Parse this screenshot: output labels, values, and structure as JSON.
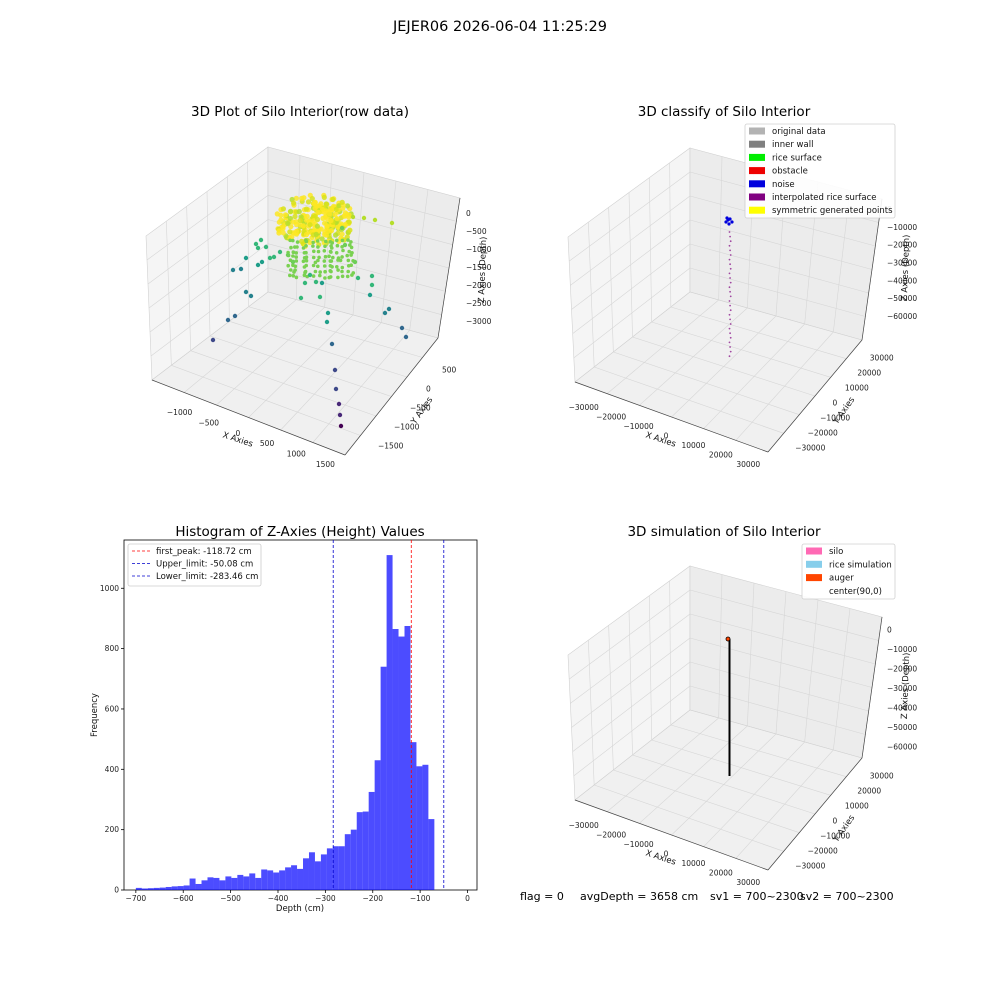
{
  "suptitle": "JEJER06 2026-06-04 11:25:29",
  "panels": {
    "raw": {
      "title": "3D Plot of Silo Interior(row data)",
      "xlabel": "X Axies",
      "ylabel": "Y Axies",
      "zlabel": "Z Axies (Depth)",
      "xticks": [
        "−1000",
        "−500",
        "0",
        "500",
        "1000",
        "1500"
      ],
      "yticks": [
        "500",
        "0",
        "−500",
        "−1000",
        "−1500"
      ],
      "zticks": [
        "0",
        "−500",
        "−1000",
        "−1500",
        "−2000",
        "−2500",
        "−3000"
      ]
    },
    "classify": {
      "title": "3D classify of Silo Interior",
      "xlabel": "X Axies",
      "ylabel": "Y Axies",
      "zlabel": "Z Axies (Depth)",
      "xticks": [
        "−30000",
        "−20000",
        "−10000",
        "0",
        "10000",
        "20000",
        "30000"
      ],
      "yticks": [
        "30000",
        "20000",
        "10000",
        "0",
        "−10000",
        "−20000",
        "−30000"
      ],
      "zticks": [
        "0",
        "−10000",
        "−20000",
        "−30000",
        "−40000",
        "−50000",
        "−60000"
      ],
      "legend": [
        {
          "label": "original data",
          "color": "#b3b3b3"
        },
        {
          "label": "inner wall",
          "color": "#808080"
        },
        {
          "label": "rice surface",
          "color": "#00ee00"
        },
        {
          "label": "obstacle",
          "color": "#ee0000"
        },
        {
          "label": "noise",
          "color": "#0000dd"
        },
        {
          "label": "interpolated rice surface",
          "color": "#800080"
        },
        {
          "label": "symmetric generated points",
          "color": "#ffff00"
        }
      ]
    },
    "simulation": {
      "title": "3D simulation of Silo Interior",
      "xlabel": "X Axies",
      "ylabel": "Y Axies",
      "zlabel": "Z Axies (Depth)",
      "xticks": [
        "−30000",
        "−20000",
        "−10000",
        "0",
        "10000",
        "20000",
        "30000"
      ],
      "yticks": [
        "30000",
        "20000",
        "10000",
        "0",
        "−10000",
        "−20000",
        "−30000"
      ],
      "zticks": [
        "0",
        "−10000",
        "−20000",
        "−30000",
        "−40000",
        "−50000",
        "−60000"
      ],
      "legend": [
        {
          "label": "silo",
          "color": "#ff69b4"
        },
        {
          "label": "rice simulation",
          "color": "#87ceeb"
        },
        {
          "label": "auger",
          "color": "#ff4500"
        },
        {
          "label": "center(90,0)",
          "color": "none"
        }
      ]
    }
  },
  "status": {
    "flag": "flag = 0",
    "avg": "avgDepth = 3658 cm",
    "sv1": "sv1 = 700~2300",
    "sv2": "sv2 = 700~2300"
  },
  "chart_data": [
    {
      "type": "scatter",
      "title": "3D Plot of Silo Interior(row data)",
      "xlabel": "X Axies",
      "ylabel": "Y Axies",
      "zlabel": "Z Axies (Depth)",
      "xlim": [
        -1300,
        1700
      ],
      "ylim": [
        -1600,
        800
      ],
      "zlim": [
        -3300,
        100
      ],
      "colormap": "viridis"
    },
    {
      "type": "scatter",
      "title": "3D classify of Silo Interior",
      "xlabel": "X Axies",
      "ylabel": "Y Axies",
      "zlabel": "Z Axies (Depth)",
      "xlim": [
        -35000,
        35000
      ],
      "ylim": [
        -35000,
        35000
      ],
      "zlim": [
        -65000,
        2000
      ],
      "series": [
        {
          "name": "original data",
          "color": "#b3b3b3"
        },
        {
          "name": "inner wall",
          "color": "#808080"
        },
        {
          "name": "rice surface",
          "color": "#00ee00"
        },
        {
          "name": "obstacle",
          "color": "#ee0000"
        },
        {
          "name": "noise",
          "color": "#0000dd"
        },
        {
          "name": "interpolated rice surface",
          "color": "#800080"
        },
        {
          "name": "symmetric generated points",
          "color": "#ffff00"
        }
      ]
    },
    {
      "type": "bar",
      "title": "Histogram of Z-Axies (Height) Values",
      "xlabel": "Depth (cm)",
      "ylabel": "Frequency",
      "xlim": [
        -725,
        20
      ],
      "ylim": [
        0,
        1160
      ],
      "xticks": [
        -700,
        -600,
        -500,
        -400,
        -300,
        -200,
        -100,
        0
      ],
      "yticks": [
        0,
        200,
        400,
        600,
        800,
        1000
      ],
      "bin_start": -700,
      "bin_width": 12.6,
      "values": [
        7,
        5,
        6,
        7,
        8,
        10,
        12,
        13,
        15,
        38,
        20,
        32,
        42,
        40,
        32,
        45,
        40,
        50,
        45,
        55,
        40,
        68,
        65,
        58,
        65,
        75,
        82,
        70,
        105,
        125,
        95,
        118,
        138,
        145,
        145,
        185,
        200,
        258,
        260,
        325,
        430,
        740,
        1110,
        865,
        840,
        875,
        490,
        410,
        415,
        235
      ],
      "color": "#0000ff",
      "reference_lines": [
        {
          "name": "first_peak",
          "label": "first_peak: -118.72 cm",
          "x": -118.72,
          "color": "#ff0000"
        },
        {
          "name": "Upper_limit",
          "label": "Upper_limit: -50.08 cm",
          "x": -50.08,
          "color": "#0000cc"
        },
        {
          "name": "Lower_limit",
          "label": "Lower_limit: -283.46 cm",
          "x": -283.46,
          "color": "#0000cc"
        }
      ]
    },
    {
      "type": "line",
      "title": "3D simulation of Silo Interior",
      "xlabel": "X Axies",
      "ylabel": "Y Axies",
      "zlabel": "Z Axies (Depth)",
      "xlim": [
        -35000,
        35000
      ],
      "ylim": [
        -35000,
        35000
      ],
      "zlim": [
        -65000,
        2000
      ],
      "series": [
        {
          "name": "silo",
          "color": "#ff69b4"
        },
        {
          "name": "rice simulation",
          "color": "#87ceeb"
        },
        {
          "name": "auger",
          "color": "#ff4500"
        },
        {
          "name": "center(90,0)"
        }
      ]
    }
  ]
}
